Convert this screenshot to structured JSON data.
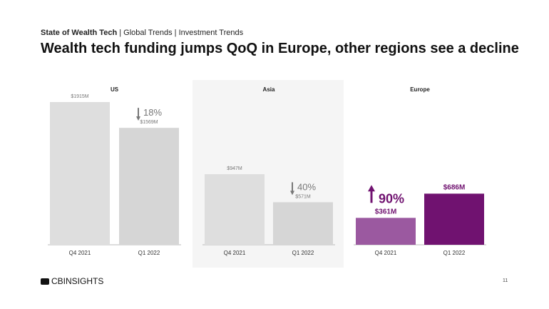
{
  "header": {
    "section": "State of Wealth Tech",
    "crumbs": " | Global Trends | Investment Trends",
    "title": "Wealth tech funding jumps QoQ in Europe, other regions see a decline"
  },
  "chart_data": [
    {
      "type": "bar",
      "title": "US",
      "categories": [
        "Q4 2021",
        "Q1 2022"
      ],
      "values": [
        1915,
        1569
      ],
      "labels": [
        "$1915M",
        "$1569M"
      ],
      "change": {
        "direction": "down",
        "text": "18%"
      },
      "colors": [
        "#dedede",
        "#d6d6d6"
      ],
      "change_color": "#777777"
    },
    {
      "type": "bar",
      "title": "Asia",
      "categories": [
        "Q4 2021",
        "Q1 2022"
      ],
      "values": [
        947,
        571
      ],
      "labels": [
        "$947M",
        "$571M"
      ],
      "change": {
        "direction": "down",
        "text": "40%"
      },
      "colors": [
        "#dedede",
        "#d6d6d6"
      ],
      "change_color": "#777777"
    },
    {
      "type": "bar",
      "title": "Europe",
      "categories": [
        "Q4 2021",
        "Q1 2022"
      ],
      "values": [
        361,
        686
      ],
      "labels": [
        "$361M",
        "$686M"
      ],
      "change": {
        "direction": "up",
        "text": "90%"
      },
      "colors": [
        "#9b59a0",
        "#701270"
      ],
      "change_color": "#701270"
    }
  ],
  "footer": {
    "logo": "CBINSIGHTS",
    "page": "11"
  }
}
